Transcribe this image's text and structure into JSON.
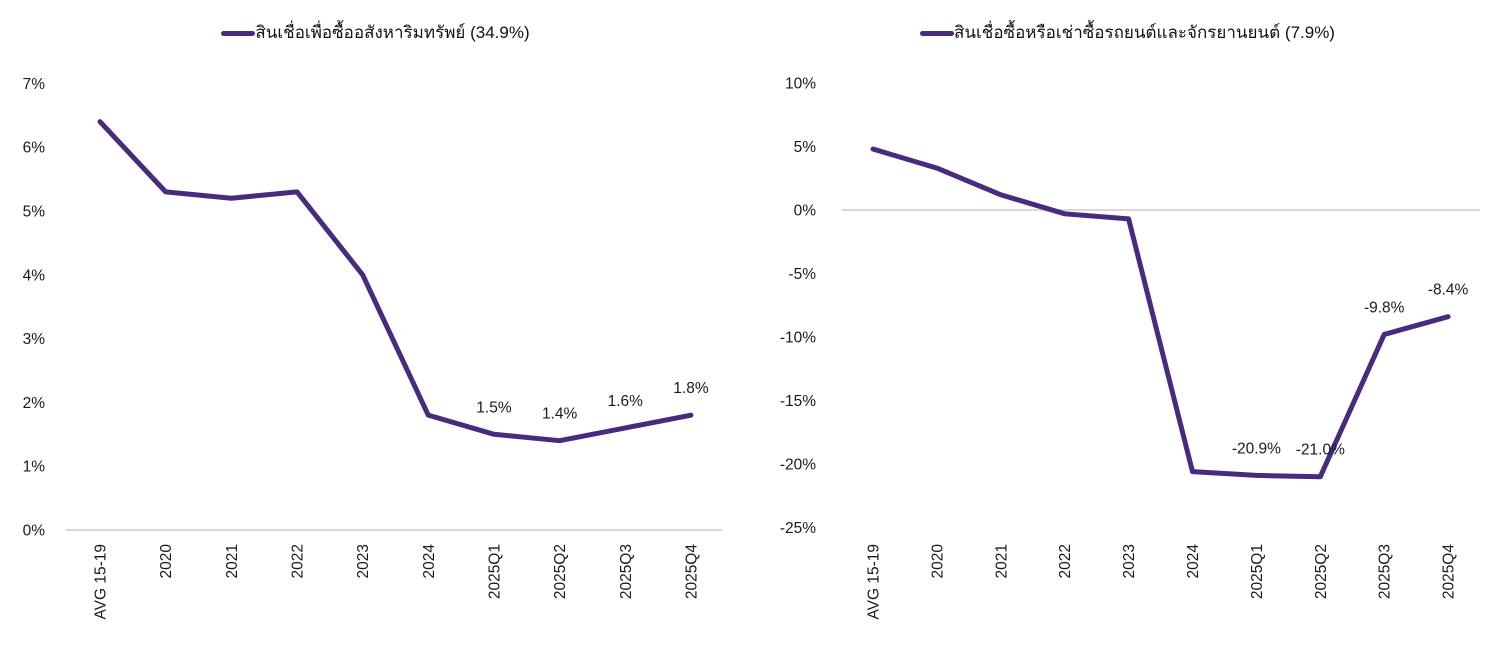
{
  "colors": {
    "line": "#472b7f",
    "zero_gridline": "#d9d9d9",
    "axis_text": "#1a1a1a",
    "data_label_text": "#1a1a1a",
    "background": "#ffffff"
  },
  "chart_data": [
    {
      "type": "line",
      "title": "สินเชื่อเพื่อซื้ออสังหาริมทรัพย์ (34.9%)",
      "legend_position": "top-center",
      "xlabel": "",
      "ylabel": "",
      "categories": [
        "AVG 15-19",
        "2020",
        "2021",
        "2022",
        "2023",
        "2024",
        "2025Q1",
        "2025Q2",
        "2025Q3",
        "2025Q4"
      ],
      "values": [
        6.4,
        5.3,
        5.2,
        5.3,
        4.0,
        1.8,
        1.5,
        1.4,
        1.6,
        1.8
      ],
      "data_labels": [
        null,
        null,
        null,
        null,
        null,
        null,
        "1.5%",
        "1.4%",
        "1.6%",
        "1.8%"
      ],
      "ylim": [
        0,
        7
      ],
      "ytick_values": [
        7,
        6,
        5,
        4,
        3,
        2,
        1,
        0
      ],
      "ytick_labels": [
        "7%",
        "6%",
        "5%",
        "4%",
        "3%",
        "2%",
        "1%",
        "0%"
      ],
      "grid": "zero-line-only",
      "line_color": "#472b7f"
    },
    {
      "type": "line",
      "title": "สินเชื่อซื้อหรือเช่าซื้อรถยนต์และจักรยานยนต์ (7.9%)",
      "legend_position": "top-center",
      "xlabel": "",
      "ylabel": "",
      "categories": [
        "AVG 15-19",
        "2020",
        "2021",
        "2022",
        "2023",
        "2024",
        "2025Q1",
        "2025Q2",
        "2025Q3",
        "2025Q4"
      ],
      "values": [
        4.8,
        3.3,
        1.2,
        -0.3,
        -0.7,
        -20.6,
        -20.9,
        -21.0,
        -9.8,
        -8.4
      ],
      "data_labels": [
        null,
        null,
        null,
        null,
        null,
        null,
        "-20.9%",
        "-21.0%",
        "-9.8%",
        "-8.4%"
      ],
      "ylim": [
        -25,
        10
      ],
      "ytick_values": [
        10,
        5,
        0,
        -5,
        -10,
        -15,
        -20,
        -25
      ],
      "ytick_labels": [
        "10%",
        "5%",
        "0%",
        "-5%",
        "-10%",
        "-15%",
        "-20%",
        "-25%"
      ],
      "grid": "zero-line-only",
      "line_color": "#472b7f"
    }
  ]
}
